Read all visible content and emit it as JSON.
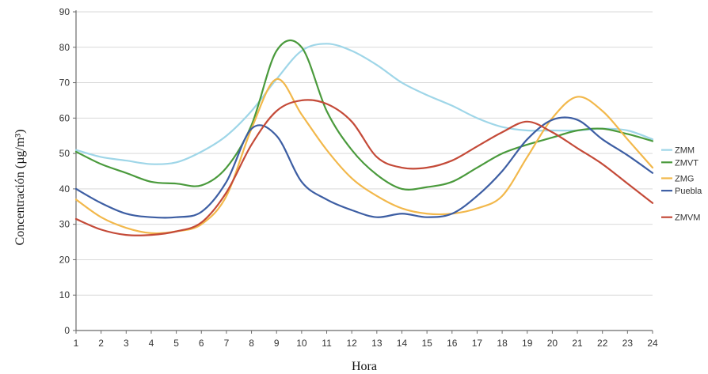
{
  "chart_data": {
    "type": "line",
    "xlabel": "Hora",
    "ylabel": "Concentración (µg/m³)",
    "ylim": [
      0,
      90
    ],
    "yticks": [
      0,
      10,
      20,
      30,
      40,
      50,
      60,
      70,
      80,
      90
    ],
    "x": [
      1,
      2,
      3,
      4,
      5,
      6,
      7,
      8,
      9,
      10,
      11,
      12,
      13,
      14,
      15,
      16,
      17,
      18,
      19,
      20,
      21,
      22,
      23,
      24
    ],
    "xlim": [
      1,
      24
    ],
    "grid": "horizontal",
    "legend_position": "right",
    "series": [
      {
        "name": "ZMM",
        "color": "#9fd6e8",
        "values": [
          51,
          49,
          48,
          47,
          47.5,
          50.5,
          55,
          62,
          71,
          79,
          81,
          79,
          75,
          70,
          66.5,
          63.5,
          60,
          57.5,
          56.5,
          56.5,
          56.5,
          57,
          56.5,
          54
        ]
      },
      {
        "name": "ZMVT",
        "color": "#4a9a3c",
        "values": [
          50.5,
          47,
          44.5,
          42,
          41.5,
          41,
          46,
          58,
          79,
          80,
          62,
          51,
          44,
          40,
          40.5,
          42,
          46,
          50,
          52.5,
          54.5,
          56.5,
          57,
          55.5,
          53.5
        ]
      },
      {
        "name": "ZMG",
        "color": "#f2b84b",
        "values": [
          37,
          32,
          29,
          27.5,
          28,
          30,
          38,
          57,
          71,
          61,
          51,
          43,
          38,
          34.5,
          33,
          33,
          34.5,
          38,
          49,
          60,
          66,
          62,
          54,
          46
        ]
      },
      {
        "name": "Puebla",
        "color": "#3d5ea3",
        "values": [
          40,
          36,
          33,
          32,
          32,
          33.5,
          42,
          57,
          55,
          42,
          37,
          34,
          32,
          33,
          32,
          33,
          38,
          45,
          54,
          59.5,
          59.5,
          54,
          49.5,
          44.5
        ]
      },
      {
        "name": "ZMVM",
        "color": "#c44a38",
        "values": [
          31.5,
          28.5,
          27,
          27,
          28,
          30.5,
          39,
          52.5,
          62,
          65,
          64,
          59,
          49,
          46,
          46,
          48,
          52,
          56,
          59,
          56,
          51.5,
          47,
          41.5,
          36
        ]
      }
    ]
  }
}
